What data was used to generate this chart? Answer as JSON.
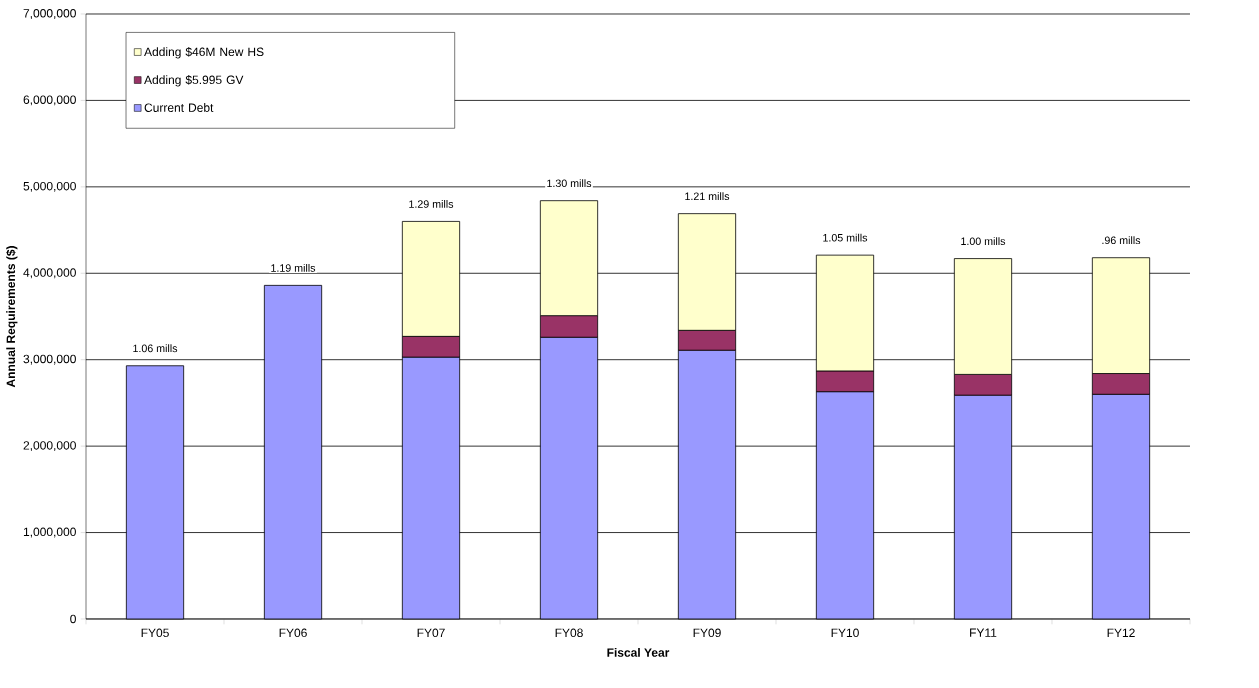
{
  "chart_data": {
    "type": "bar",
    "stacked": true,
    "xlabel": "Fiscal Year",
    "ylabel": "Annual Requirements ($)",
    "categories": [
      "FY05",
      "FY06",
      "FY07",
      "FY08",
      "FY09",
      "FY10",
      "FY11",
      "FY12"
    ],
    "series": [
      {
        "name": "Current Debt",
        "color": "#9999ff",
        "values": [
          2930000,
          3860000,
          3030000,
          3260000,
          3110000,
          2630000,
          2590000,
          2600000
        ]
      },
      {
        "name": "Adding $5.995 GV",
        "color": "#993366",
        "values": [
          null,
          null,
          240000,
          250000,
          230000,
          240000,
          240000,
          240000
        ]
      },
      {
        "name": "Adding $46M New HS",
        "color": "#ffffcc",
        "values": [
          null,
          null,
          1330000,
          1330000,
          1350000,
          1340000,
          1340000,
          1340000
        ]
      }
    ],
    "ylim": [
      0,
      7000000
    ],
    "yticks": [
      {
        "value": 0,
        "label": "0"
      },
      {
        "value": 1000000,
        "label": "1,000,000"
      },
      {
        "value": 2000000,
        "label": "2,000,000"
      },
      {
        "value": 3000000,
        "label": "3,000,000"
      },
      {
        "value": 4000000,
        "label": "4,000,000"
      },
      {
        "value": 5000000,
        "label": "5,000,000"
      },
      {
        "value": 6000000,
        "label": "6,000,000"
      },
      {
        "value": 7000000,
        "label": "7,000,000"
      }
    ],
    "grid": "y",
    "legend": "top left",
    "annotations": [
      {
        "text": "1.06 mills",
        "x": "FY05",
        "y": 2930000
      },
      {
        "text": "1.19 mills",
        "x": "FY06",
        "y": 3860000
      },
      {
        "text": "1.29 mills",
        "x": "FY07",
        "y": 4600000
      },
      {
        "text": "1.30 mills",
        "x": "FY08",
        "y": 4840000
      },
      {
        "text": "1.21 mills",
        "x": "FY09",
        "y": 4690000
      },
      {
        "text": "1.05 mills",
        "x": "FY10",
        "y": 4210000
      },
      {
        "text": "1.00 mills",
        "x": "FY11",
        "y": 4170000
      },
      {
        "text": ".96 mills",
        "x": "FY12",
        "y": 4180000
      }
    ]
  }
}
